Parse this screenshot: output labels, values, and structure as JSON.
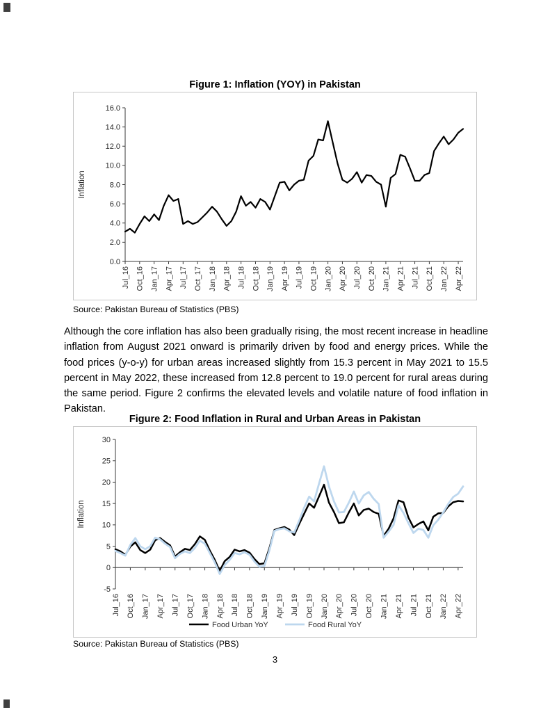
{
  "page": {
    "number": "3"
  },
  "figure1": {
    "title": "Figure 1: Inflation (YOY) in Pakistan",
    "source": "Source: Pakistan Bureau of Statistics (PBS)"
  },
  "body_paragraph": "Although the core inflation has also been gradually rising, the most recent increase in headline inflation from August 2021 onward is primarily driven by food and energy prices. While the food prices (y-o-y) for urban areas increased slightly from 15.3 percent in May 2021 to 15.5 percent in May 2022, these increased from 12.8 percent to 19.0 percent for rural areas during the same period. Figure 2 confirms the elevated levels and volatile nature of food inflation in Pakistan.",
  "figure2": {
    "title": "Figure 2: Food Inflation in Rural and Urban Areas in Pakistan",
    "source": "Source: Pakistan Bureau of Statistics (PBS)"
  },
  "chart_data": [
    {
      "type": "line",
      "title": "Figure 1: Inflation (YOY) in Pakistan",
      "ylabel": "Inflation",
      "ylim": [
        0,
        16
      ],
      "yticks": [
        0,
        2,
        4,
        6,
        8,
        10,
        12,
        14,
        16
      ],
      "ytick_format": "one_decimal",
      "grid": false,
      "legend_position": "none",
      "xtick_every": 3,
      "x": [
        "Jul_16",
        "Aug_16",
        "Sep_16",
        "Oct_16",
        "Nov_16",
        "Dec_16",
        "Jan_17",
        "Feb_17",
        "Mar_17",
        "Apr_17",
        "May_17",
        "Jun_17",
        "Jul_17",
        "Aug_17",
        "Sep_17",
        "Oct_17",
        "Nov_17",
        "Dec_17",
        "Jan_18",
        "Feb_18",
        "Mar_18",
        "Apr_18",
        "May_18",
        "Jun_18",
        "Jul_18",
        "Aug_18",
        "Sep_18",
        "Oct_18",
        "Nov_18",
        "Dec_18",
        "Jan_19",
        "Feb_19",
        "Mar_19",
        "Apr_19",
        "May_19",
        "Jun_19",
        "Jul_19",
        "Aug_19",
        "Sep_19",
        "Oct_19",
        "Nov_19",
        "Dec_19",
        "Jan_20",
        "Feb_20",
        "Mar_20",
        "Apr_20",
        "May_20",
        "Jun_20",
        "Jul_20",
        "Aug_20",
        "Sep_20",
        "Oct_20",
        "Nov_20",
        "Dec_20",
        "Jan_21",
        "Feb_21",
        "Mar_21",
        "Apr_21",
        "May_21",
        "Jun_21",
        "Jul_21",
        "Aug_21",
        "Sep_21",
        "Oct_21",
        "Nov_21",
        "Dec_21",
        "Jan_22",
        "Feb_22",
        "Mar_22",
        "Apr_22",
        "May_22"
      ],
      "series": [
        {
          "name": "Inflation (YoY)",
          "color": "#000000",
          "values": [
            3.1,
            3.4,
            3.0,
            3.9,
            4.7,
            4.2,
            4.9,
            4.3,
            5.8,
            6.9,
            6.3,
            6.5,
            3.9,
            4.2,
            3.9,
            4.1,
            4.6,
            5.1,
            5.7,
            5.2,
            4.4,
            3.7,
            4.2,
            5.2,
            6.8,
            5.8,
            6.2,
            5.6,
            6.5,
            6.2,
            5.4,
            6.8,
            8.2,
            8.3,
            7.4,
            8.0,
            8.4,
            8.5,
            10.5,
            11.0,
            12.7,
            12.6,
            14.6,
            12.4,
            10.2,
            8.5,
            8.2,
            8.6,
            9.3,
            8.2,
            9.0,
            8.9,
            8.3,
            8.0,
            5.7,
            8.7,
            9.1,
            11.1,
            10.9,
            9.7,
            8.4,
            8.4,
            9.0,
            9.2,
            11.5,
            12.3,
            13.0,
            12.2,
            12.7,
            13.4,
            13.8
          ]
        }
      ]
    },
    {
      "type": "line",
      "title": "Figure 2: Food Inflation in Rural and Urban Areas in Pakistan",
      "ylabel": "Inflation",
      "ylim": [
        -5,
        30
      ],
      "yticks": [
        -5,
        0,
        5,
        10,
        15,
        20,
        25,
        30
      ],
      "ytick_format": "integer",
      "grid": false,
      "legend_position": "bottom",
      "xtick_every": 3,
      "x": [
        "Jul_16",
        "Aug_16",
        "Sep_16",
        "Oct_16",
        "Nov_16",
        "Dec_16",
        "Jan_17",
        "Feb_17",
        "Mar_17",
        "Apr_17",
        "May_17",
        "Jun_17",
        "Jul_17",
        "Aug_17",
        "Sep_17",
        "Oct_17",
        "Nov_17",
        "Dec_17",
        "Jan_18",
        "Feb_18",
        "Mar_18",
        "Apr_18",
        "May_18",
        "Jun_18",
        "Jul_18",
        "Aug_18",
        "Sep_18",
        "Oct_18",
        "Nov_18",
        "Dec_18",
        "Jan_19",
        "Feb_19",
        "Mar_19",
        "Apr_19",
        "May_19",
        "Jun_19",
        "Jul_19",
        "Aug_19",
        "Sep_19",
        "Oct_19",
        "Nov_19",
        "Dec_19",
        "Jan_20",
        "Feb_20",
        "Mar_20",
        "Apr_20",
        "May_20",
        "Jun_20",
        "Jul_20",
        "Aug_20",
        "Sep_20",
        "Oct_20",
        "Nov_20",
        "Dec_20",
        "Jan_21",
        "Feb_21",
        "Mar_21",
        "Apr_21",
        "May_21",
        "Jun_21",
        "Jul_21",
        "Aug_21",
        "Sep_21",
        "Oct_21",
        "Nov_21",
        "Dec_21",
        "Jan_22",
        "Feb_22",
        "Mar_22",
        "Apr_22",
        "May_22"
      ],
      "series": [
        {
          "name": "Food Urban YoY",
          "color": "#000000",
          "values": [
            4.3,
            3.8,
            3.0,
            4.9,
            5.9,
            4.1,
            3.4,
            4.2,
            6.4,
            6.9,
            6.0,
            5.2,
            2.6,
            3.6,
            4.4,
            4.1,
            5.5,
            7.3,
            6.5,
            4.0,
            1.8,
            -0.8,
            1.5,
            2.5,
            4.2,
            3.8,
            4.1,
            3.5,
            2.0,
            0.8,
            1.0,
            4.5,
            8.8,
            9.2,
            9.5,
            8.9,
            7.6,
            10.2,
            12.6,
            15.0,
            14.0,
            16.7,
            19.4,
            15.2,
            13.0,
            10.4,
            10.6,
            12.9,
            15.0,
            12.2,
            13.5,
            13.8,
            13.0,
            12.6,
            7.4,
            9.1,
            11.5,
            15.7,
            15.3,
            11.7,
            9.4,
            10.2,
            10.8,
            8.7,
            11.9,
            12.7,
            12.8,
            14.3,
            15.3,
            15.6,
            15.5
          ]
        },
        {
          "name": "Food Rural YoY",
          "color": "#BDD7EE",
          "values": [
            3.9,
            3.4,
            2.8,
            5.3,
            6.9,
            5.0,
            4.3,
            5.0,
            7.0,
            6.6,
            5.6,
            4.8,
            2.2,
            3.2,
            3.8,
            3.4,
            4.6,
            6.3,
            5.6,
            3.4,
            1.2,
            -1.5,
            0.6,
            1.8,
            3.4,
            3.1,
            3.6,
            3.0,
            1.4,
            0.2,
            0.4,
            4.0,
            8.6,
            9.0,
            9.2,
            8.5,
            8.2,
            11.0,
            14.0,
            16.6,
            15.5,
            19.7,
            23.7,
            19.0,
            15.5,
            12.9,
            13.0,
            15.2,
            17.8,
            15.0,
            16.9,
            17.7,
            16.1,
            14.9,
            7.0,
            8.4,
            10.0,
            14.6,
            12.8,
            10.4,
            8.1,
            9.1,
            8.8,
            7.0,
            9.9,
            11.2,
            12.9,
            14.9,
            16.5,
            17.3,
            19.0
          ]
        }
      ]
    }
  ]
}
